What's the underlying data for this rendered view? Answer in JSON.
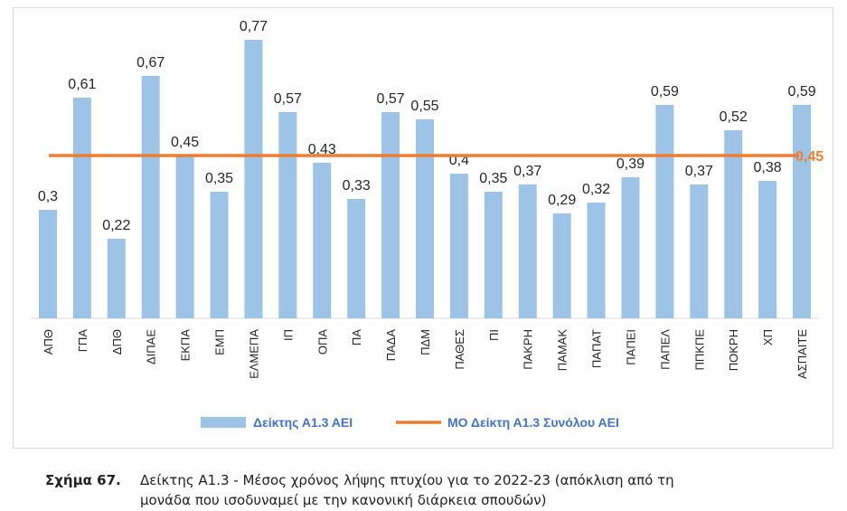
{
  "chart_data": {
    "type": "bar",
    "categories": [
      "ΑΠΘ",
      "ΓΠΑ",
      "ΔΠΘ",
      "ΔΙΠΑΕ",
      "ΕΚΠΑ",
      "ΕΜΠ",
      "ΕΛΜΕΠΑ",
      "ΙΠ",
      "ΟΠΑ",
      "ΠΑ",
      "ΠΑΔΑ",
      "ΠΔΜ",
      "ΠΑΘΕΣ",
      "ΠΙ",
      "ΠΑΚΡΗ",
      "ΠΑΜΑΚ",
      "ΠΑΠΑΤ",
      "ΠΑΠΕΙ",
      "ΠΑΠΕΛ",
      "ΠΠΚΠΕ",
      "ΠΟΚΡΗ",
      "ΧΠ",
      "ΑΣΠΑΙΤΕ"
    ],
    "value_labels": [
      "0,3",
      "0,61",
      "0,22",
      "0,67",
      "0,45",
      "0,35",
      "0,77",
      "0,57",
      "0,43",
      "0,33",
      "0,57",
      "0,55",
      "0,4",
      "0,35",
      "0,37",
      "0,29",
      "0,32",
      "0,39",
      "0,59",
      "0,37",
      "0,52",
      "0,38",
      "0,59"
    ],
    "series": [
      {
        "name": "Δείκτης Α1.3 ΑΕΙ",
        "color": "#9dc3e6",
        "values": [
          0.3,
          0.61,
          0.22,
          0.67,
          0.45,
          0.35,
          0.77,
          0.57,
          0.43,
          0.33,
          0.57,
          0.55,
          0.4,
          0.35,
          0.37,
          0.29,
          0.32,
          0.39,
          0.59,
          0.37,
          0.52,
          0.38,
          0.59
        ]
      },
      {
        "name": "ΜΟ Δείκτη Α1.3 Συνόλου ΑΕΙ",
        "color": "#ed7d31",
        "value": 0.45,
        "value_label": "0,45"
      }
    ],
    "ylim": [
      0,
      0.8
    ],
    "title": "",
    "xlabel": "",
    "ylabel": ""
  },
  "caption": {
    "label": "Σχήμα 67.",
    "line1": "Δείκτης Α1.3 - Μέσος χρόνος λήψης πτυχίου για το 2022-23 (απόκλιση από τη",
    "line2": "μονάδα που ισοδυναμεί με την κανονική διάρκεια σπουδών)"
  }
}
